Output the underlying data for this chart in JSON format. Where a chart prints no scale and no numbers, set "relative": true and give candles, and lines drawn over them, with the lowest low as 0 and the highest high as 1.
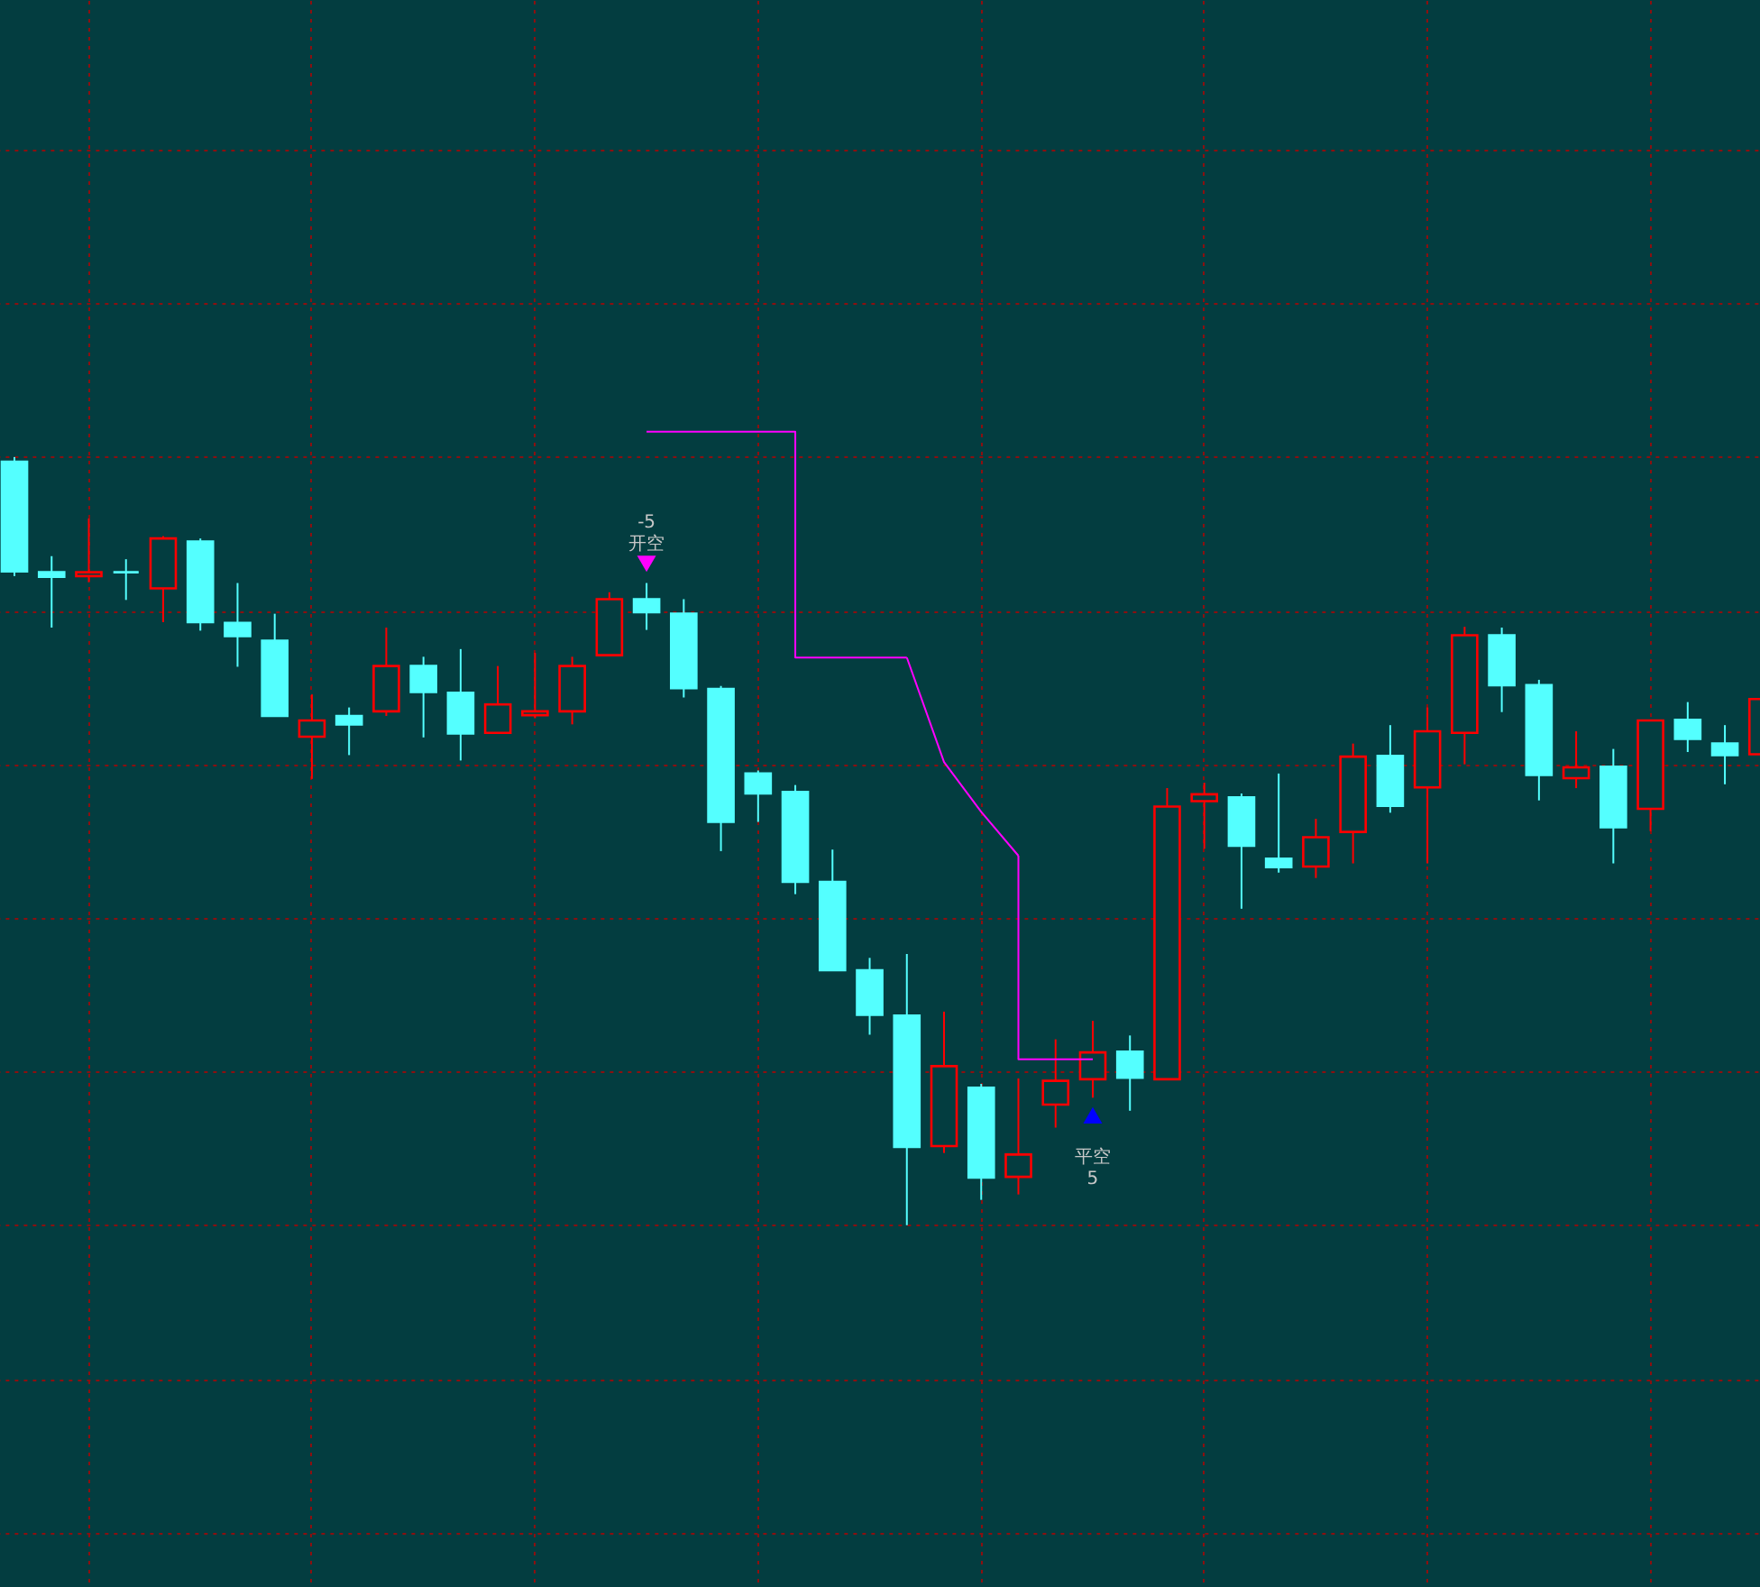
{
  "chart_data": {
    "type": "candlestick",
    "relative": true,
    "grid": true,
    "categories": [
      null,
      null,
      null,
      null,
      null,
      null,
      null,
      null,
      null,
      null,
      null,
      null,
      null,
      null,
      null,
      null,
      null,
      null,
      null,
      null,
      null,
      null,
      null,
      null,
      null,
      null,
      null,
      null,
      null,
      null,
      null,
      null,
      null,
      null,
      null,
      null,
      null,
      null,
      null,
      null,
      null,
      null,
      null,
      null,
      null,
      null,
      null,
      null
    ],
    "ohlc": [
      [
        0.994,
        1.0,
        0.845,
        0.851
      ],
      [
        0.85,
        0.871,
        0.778,
        0.844
      ],
      [
        0.845,
        0.92,
        0.837,
        0.85
      ],
      [
        0.85,
        0.867,
        0.814,
        0.85
      ],
      [
        0.829,
        0.897,
        0.785,
        0.894
      ],
      [
        0.89,
        0.894,
        0.774,
        0.785
      ],
      [
        0.784,
        0.836,
        0.727,
        0.767
      ],
      [
        0.761,
        0.796,
        0.663,
        0.663
      ],
      [
        0.636,
        0.691,
        0.581,
        0.657
      ],
      [
        0.663,
        0.674,
        0.612,
        0.652
      ],
      [
        0.669,
        0.778,
        0.663,
        0.728
      ],
      [
        0.728,
        0.74,
        0.635,
        0.694
      ],
      [
        0.693,
        0.75,
        0.605,
        0.64
      ],
      [
        0.641,
        0.728,
        0.641,
        0.678
      ],
      [
        0.664,
        0.745,
        0.66,
        0.669
      ],
      [
        0.669,
        0.74,
        0.652,
        0.728
      ],
      [
        0.742,
        0.824,
        0.742,
        0.815
      ],
      [
        0.815,
        0.836,
        0.775,
        0.798
      ],
      [
        0.796,
        0.815,
        0.687,
        0.699
      ],
      [
        0.698,
        0.702,
        0.487,
        0.525
      ],
      [
        0.588,
        0.592,
        0.525,
        0.562
      ],
      [
        0.564,
        0.573,
        0.431,
        0.447
      ],
      [
        0.447,
        0.489,
        0.332,
        0.332
      ],
      [
        0.332,
        0.348,
        0.248,
        0.274
      ],
      [
        0.273,
        0.353,
        0.0,
        0.102
      ],
      [
        0.103,
        0.278,
        0.094,
        0.207
      ],
      [
        0.179,
        0.184,
        0.033,
        0.062
      ],
      [
        0.063,
        0.191,
        0.04,
        0.092
      ],
      [
        0.157,
        0.242,
        0.127,
        0.188
      ],
      [
        0.19,
        0.266,
        0.166,
        0.225
      ],
      [
        0.226,
        0.247,
        0.149,
        0.192
      ],
      [
        0.19,
        0.569,
        0.19,
        0.545
      ],
      [
        0.552,
        0.576,
        0.49,
        0.561
      ],
      [
        0.557,
        0.562,
        0.412,
        0.494
      ],
      [
        0.477,
        0.588,
        0.459,
        0.466
      ],
      [
        0.467,
        0.529,
        0.452,
        0.505
      ],
      [
        0.512,
        0.627,
        0.471,
        0.61
      ],
      [
        0.611,
        0.651,
        0.537,
        0.546
      ],
      [
        0.57,
        0.674,
        0.471,
        0.643
      ],
      [
        0.641,
        0.779,
        0.6,
        0.768
      ],
      [
        0.768,
        0.778,
        0.668,
        0.703
      ],
      [
        0.703,
        0.71,
        0.553,
        0.586
      ],
      [
        0.582,
        0.643,
        0.569,
        0.596
      ],
      [
        0.597,
        0.62,
        0.471,
        0.518
      ],
      [
        0.542,
        0.657,
        0.513,
        0.657
      ],
      [
        0.658,
        0.681,
        0.616,
        0.633
      ],
      [
        0.627,
        0.651,
        0.574,
        0.612
      ],
      [
        0.613,
        0.685,
        0.613,
        0.685
      ]
    ],
    "colors": [
      "#54ffff",
      "#54ffff",
      "#ff0000",
      "#54ffff",
      "#ff0000",
      "#54ffff",
      "#54ffff",
      "#54ffff",
      "#ff0000",
      "#54ffff",
      "#ff0000",
      "#54ffff",
      "#54ffff",
      "#ff0000",
      "#ff0000",
      "#ff0000",
      "#ff0000",
      "#54ffff",
      "#54ffff",
      "#54ffff",
      "#54ffff",
      "#54ffff",
      "#54ffff",
      "#54ffff",
      "#54ffff",
      "#ff0000",
      "#54ffff",
      "#ff0000",
      "#ff0000",
      "#ff0000",
      "#54ffff",
      "#ff0000",
      "#ff0000",
      "#54ffff",
      "#54ffff",
      "#ff0000",
      "#ff0000",
      "#54ffff",
      "#ff0000",
      "#ff0000",
      "#54ffff",
      "#54ffff",
      "#ff0000",
      "#54ffff",
      "#ff0000",
      "#54ffff",
      "#54ffff",
      "#ff0000"
    ],
    "series": [
      {
        "type": "step",
        "color": "#ff00ff",
        "values": [
          null,
          null,
          null,
          null,
          null,
          null,
          null,
          null,
          null,
          null,
          null,
          null,
          null,
          null,
          null,
          null,
          null,
          1.033,
          1.033,
          1.033,
          1.033,
          1.033,
          0.739,
          0.739,
          0.739,
          null,
          null,
          null,
          null,
          null,
          null,
          null,
          null,
          null,
          null,
          null,
          null,
          null,
          null,
          null,
          null,
          null,
          null,
          null,
          null,
          null,
          null,
          null
        ]
      },
      {
        "type": "line",
        "color": "#ff00ff",
        "values": [
          null,
          null,
          null,
          null,
          null,
          null,
          null,
          null,
          null,
          null,
          null,
          null,
          null,
          null,
          null,
          null,
          null,
          null,
          null,
          null,
          null,
          null,
          null,
          null,
          0.739,
          0.603,
          0.538,
          0.481,
          null,
          null,
          null,
          null,
          null,
          null,
          null,
          null,
          null,
          null,
          null,
          null,
          null,
          null,
          null,
          null,
          null,
          null,
          null,
          null
        ]
      },
      {
        "type": "step",
        "color": "#ff00ff",
        "values": [
          null,
          null,
          null,
          null,
          null,
          null,
          null,
          null,
          null,
          null,
          null,
          null,
          null,
          null,
          null,
          null,
          null,
          null,
          null,
          null,
          null,
          null,
          null,
          null,
          null,
          null,
          null,
          0.481,
          0.216,
          0.216,
          null,
          null,
          null,
          null,
          null,
          null,
          null,
          null,
          null,
          null,
          null,
          null,
          null,
          null,
          null,
          null,
          null,
          null
        ]
      },
      {
        "type": "scatter",
        "marker": "triangle-down",
        "color": "#ff00ff",
        "values": [
          null,
          null,
          null,
          null,
          null,
          null,
          null,
          null,
          null,
          null,
          null,
          null,
          null,
          null,
          null,
          null,
          null,
          0.861,
          null,
          null,
          null,
          null,
          null,
          null,
          null,
          null,
          null,
          null,
          null,
          null,
          null,
          null,
          null,
          null,
          null,
          null,
          null,
          null,
          null,
          null,
          null,
          null,
          null,
          null,
          null,
          null,
          null,
          null
        ]
      },
      {
        "type": "scatter",
        "marker": "triangle",
        "color": "#0000ff",
        "values": [
          null,
          null,
          null,
          null,
          null,
          null,
          null,
          null,
          null,
          null,
          null,
          null,
          null,
          null,
          null,
          null,
          null,
          null,
          null,
          null,
          null,
          null,
          null,
          null,
          null,
          null,
          null,
          null,
          null,
          0.143,
          null,
          null,
          null,
          null,
          null,
          null,
          null,
          null,
          null,
          null,
          null,
          null,
          null,
          null,
          null,
          null,
          null,
          null
        ]
      }
    ],
    "annotations": [
      "-5\n开空",
      "平空\n5"
    ]
  }
}
